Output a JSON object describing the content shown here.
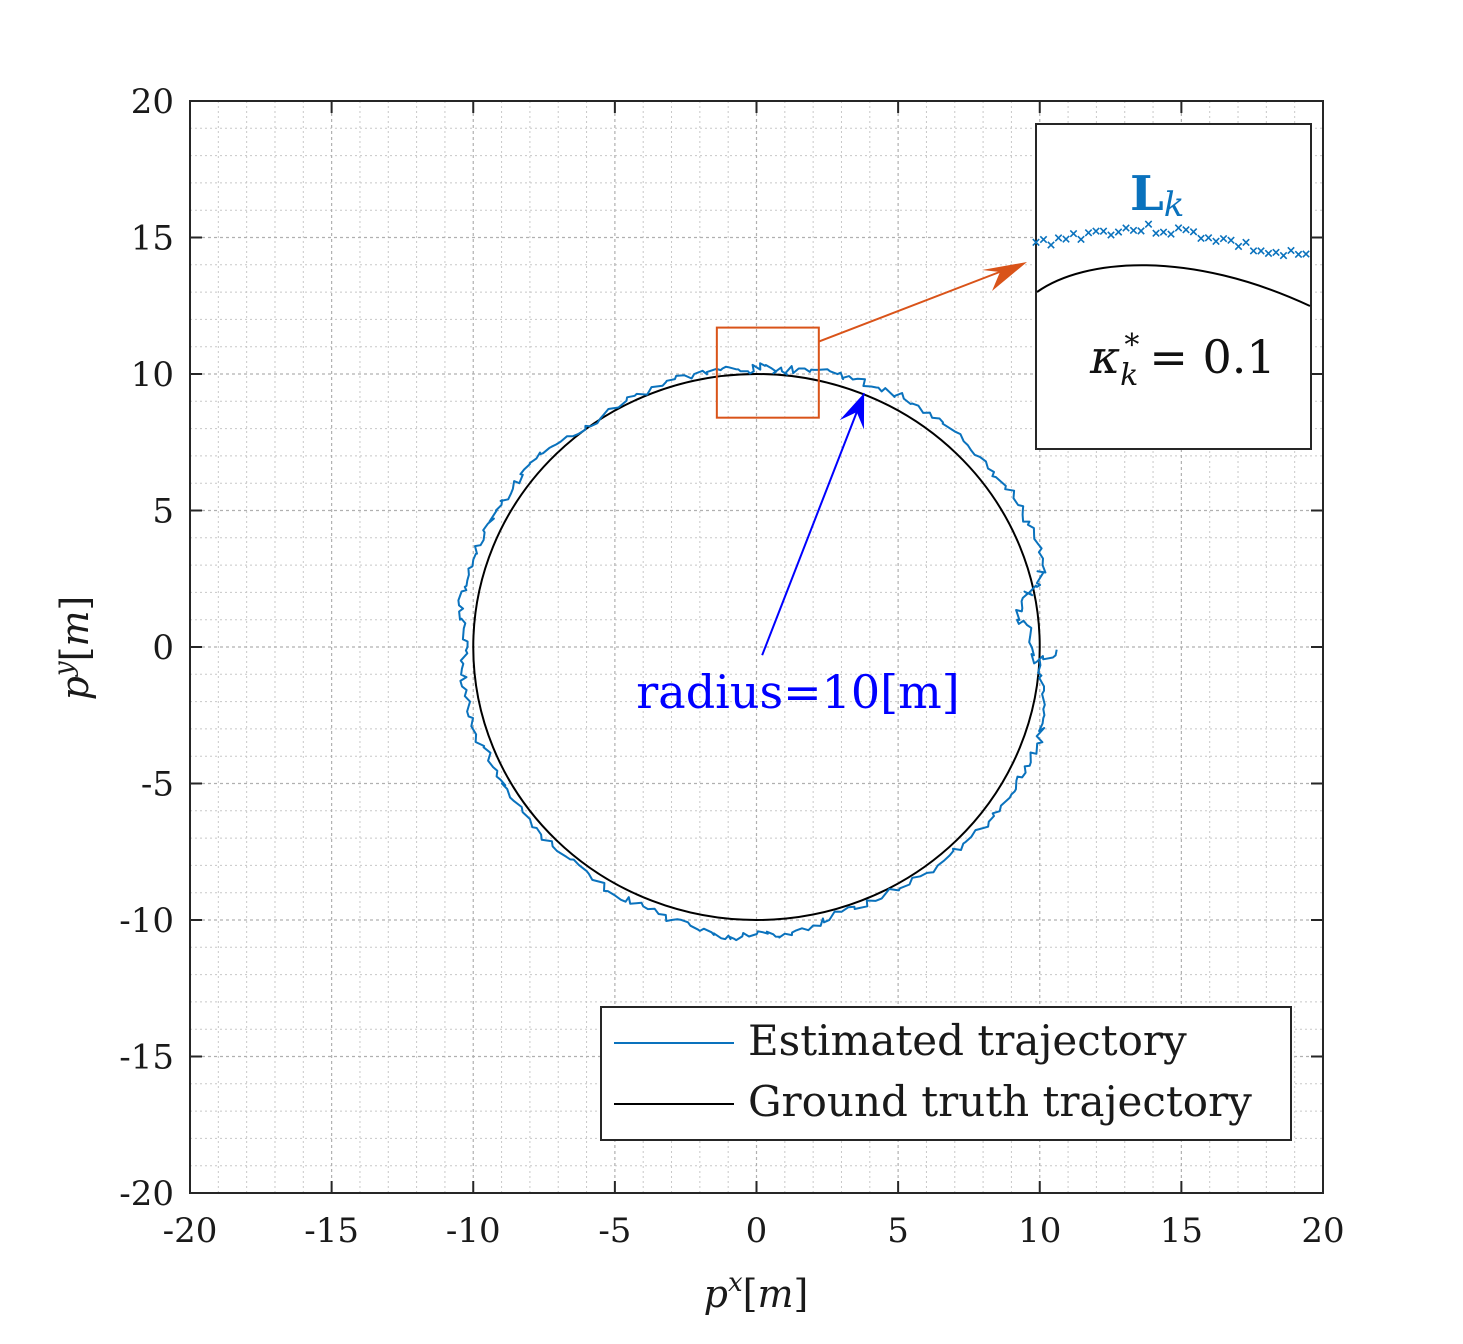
{
  "chart_data": {
    "type": "line",
    "xlabel": "p^x[m]",
    "ylabel": "p^y[m]",
    "xlim": [
      -20,
      20
    ],
    "ylim": [
      -20,
      20
    ],
    "x_ticks": [
      "-20",
      "-15",
      "-10",
      "-5",
      "0",
      "5",
      "10",
      "15",
      "20"
    ],
    "y_ticks": [
      "-20",
      "-15",
      "-10",
      "-5",
      "0",
      "5",
      "10",
      "15",
      "20"
    ],
    "grid": "major and minor",
    "legend_position": "bottom-right",
    "series": [
      {
        "name": "Estimated trajectory",
        "color": "#0a72bd",
        "points": [
          [
            10.0,
            -0.5
          ],
          [
            10.15,
            -1.6
          ],
          [
            10.1,
            -2.8
          ],
          [
            9.9,
            -3.7
          ],
          [
            9.5,
            -4.6
          ],
          [
            9.0,
            -5.4
          ],
          [
            8.2,
            -6.4
          ],
          [
            7.3,
            -7.2
          ],
          [
            6.4,
            -8.0
          ],
          [
            5.4,
            -8.7
          ],
          [
            4.2,
            -9.3
          ],
          [
            3.0,
            -9.7
          ],
          [
            2.0,
            -10.2
          ],
          [
            1.0,
            -10.5
          ],
          [
            0.4,
            -10.5
          ],
          [
            -0.5,
            -10.6
          ],
          [
            -1.1,
            -10.7
          ],
          [
            -2.0,
            -10.4
          ],
          [
            -3.0,
            -10.0
          ],
          [
            -4.0,
            -9.5
          ],
          [
            -5.0,
            -9.1
          ],
          [
            -6.0,
            -8.2
          ],
          [
            -7.2,
            -7.3
          ],
          [
            -8.0,
            -6.3
          ],
          [
            -8.8,
            -5.2
          ],
          [
            -9.3,
            -4.4
          ],
          [
            -9.9,
            -3.2
          ],
          [
            -10.3,
            -1.8
          ],
          [
            -10.4,
            -0.8
          ],
          [
            -10.2,
            0.2
          ],
          [
            -10.5,
            1.3
          ],
          [
            -10.3,
            2.2
          ],
          [
            -10.0,
            3.2
          ],
          [
            -9.6,
            4.2
          ],
          [
            -9.2,
            5.0
          ],
          [
            -8.6,
            5.8
          ],
          [
            -8.0,
            6.7
          ],
          [
            -7.3,
            7.3
          ],
          [
            -6.3,
            7.8
          ],
          [
            -5.4,
            8.5
          ],
          [
            -4.3,
            9.2
          ],
          [
            -3.2,
            9.7
          ],
          [
            -2.2,
            10.0
          ],
          [
            -1.2,
            10.2
          ],
          [
            -0.3,
            10.1
          ],
          [
            0.3,
            10.3
          ],
          [
            0.9,
            10.1
          ],
          [
            1.7,
            10.2
          ],
          [
            2.6,
            10.1
          ],
          [
            3.4,
            9.8
          ],
          [
            4.3,
            9.5
          ],
          [
            5.2,
            9.1
          ],
          [
            6.2,
            8.4
          ],
          [
            7.2,
            7.8
          ],
          [
            8.1,
            6.8
          ],
          [
            8.8,
            5.9
          ],
          [
            9.4,
            5.0
          ],
          [
            9.8,
            4.1
          ],
          [
            10.1,
            3.0
          ],
          [
            9.9,
            2.2
          ],
          [
            9.4,
            1.8
          ],
          [
            9.2,
            1.0
          ],
          [
            9.7,
            0.7
          ],
          [
            9.8,
            -0.6
          ],
          [
            10.6,
            -0.1
          ]
        ]
      },
      {
        "name": "Ground truth trajectory",
        "color": "#000000",
        "shape": "circle",
        "center": [
          0,
          0
        ],
        "radius": 10
      }
    ],
    "annotations": {
      "radius_label": "radius=10[m]",
      "arrow_from": [
        0.2,
        -0.3
      ],
      "arrow_to": [
        3.8,
        9.3
      ],
      "zoom_box": {
        "x": [
          -1.4,
          2.2
        ],
        "y": [
          8.4,
          11.7
        ],
        "color": "#d95319"
      },
      "inset": {
        "series_label": "L",
        "series_label_sub": "k",
        "kappa_label": "κ",
        "kappa_sub": "k",
        "kappa_sup": "*",
        "kappa_value": "= 0.1"
      }
    }
  }
}
